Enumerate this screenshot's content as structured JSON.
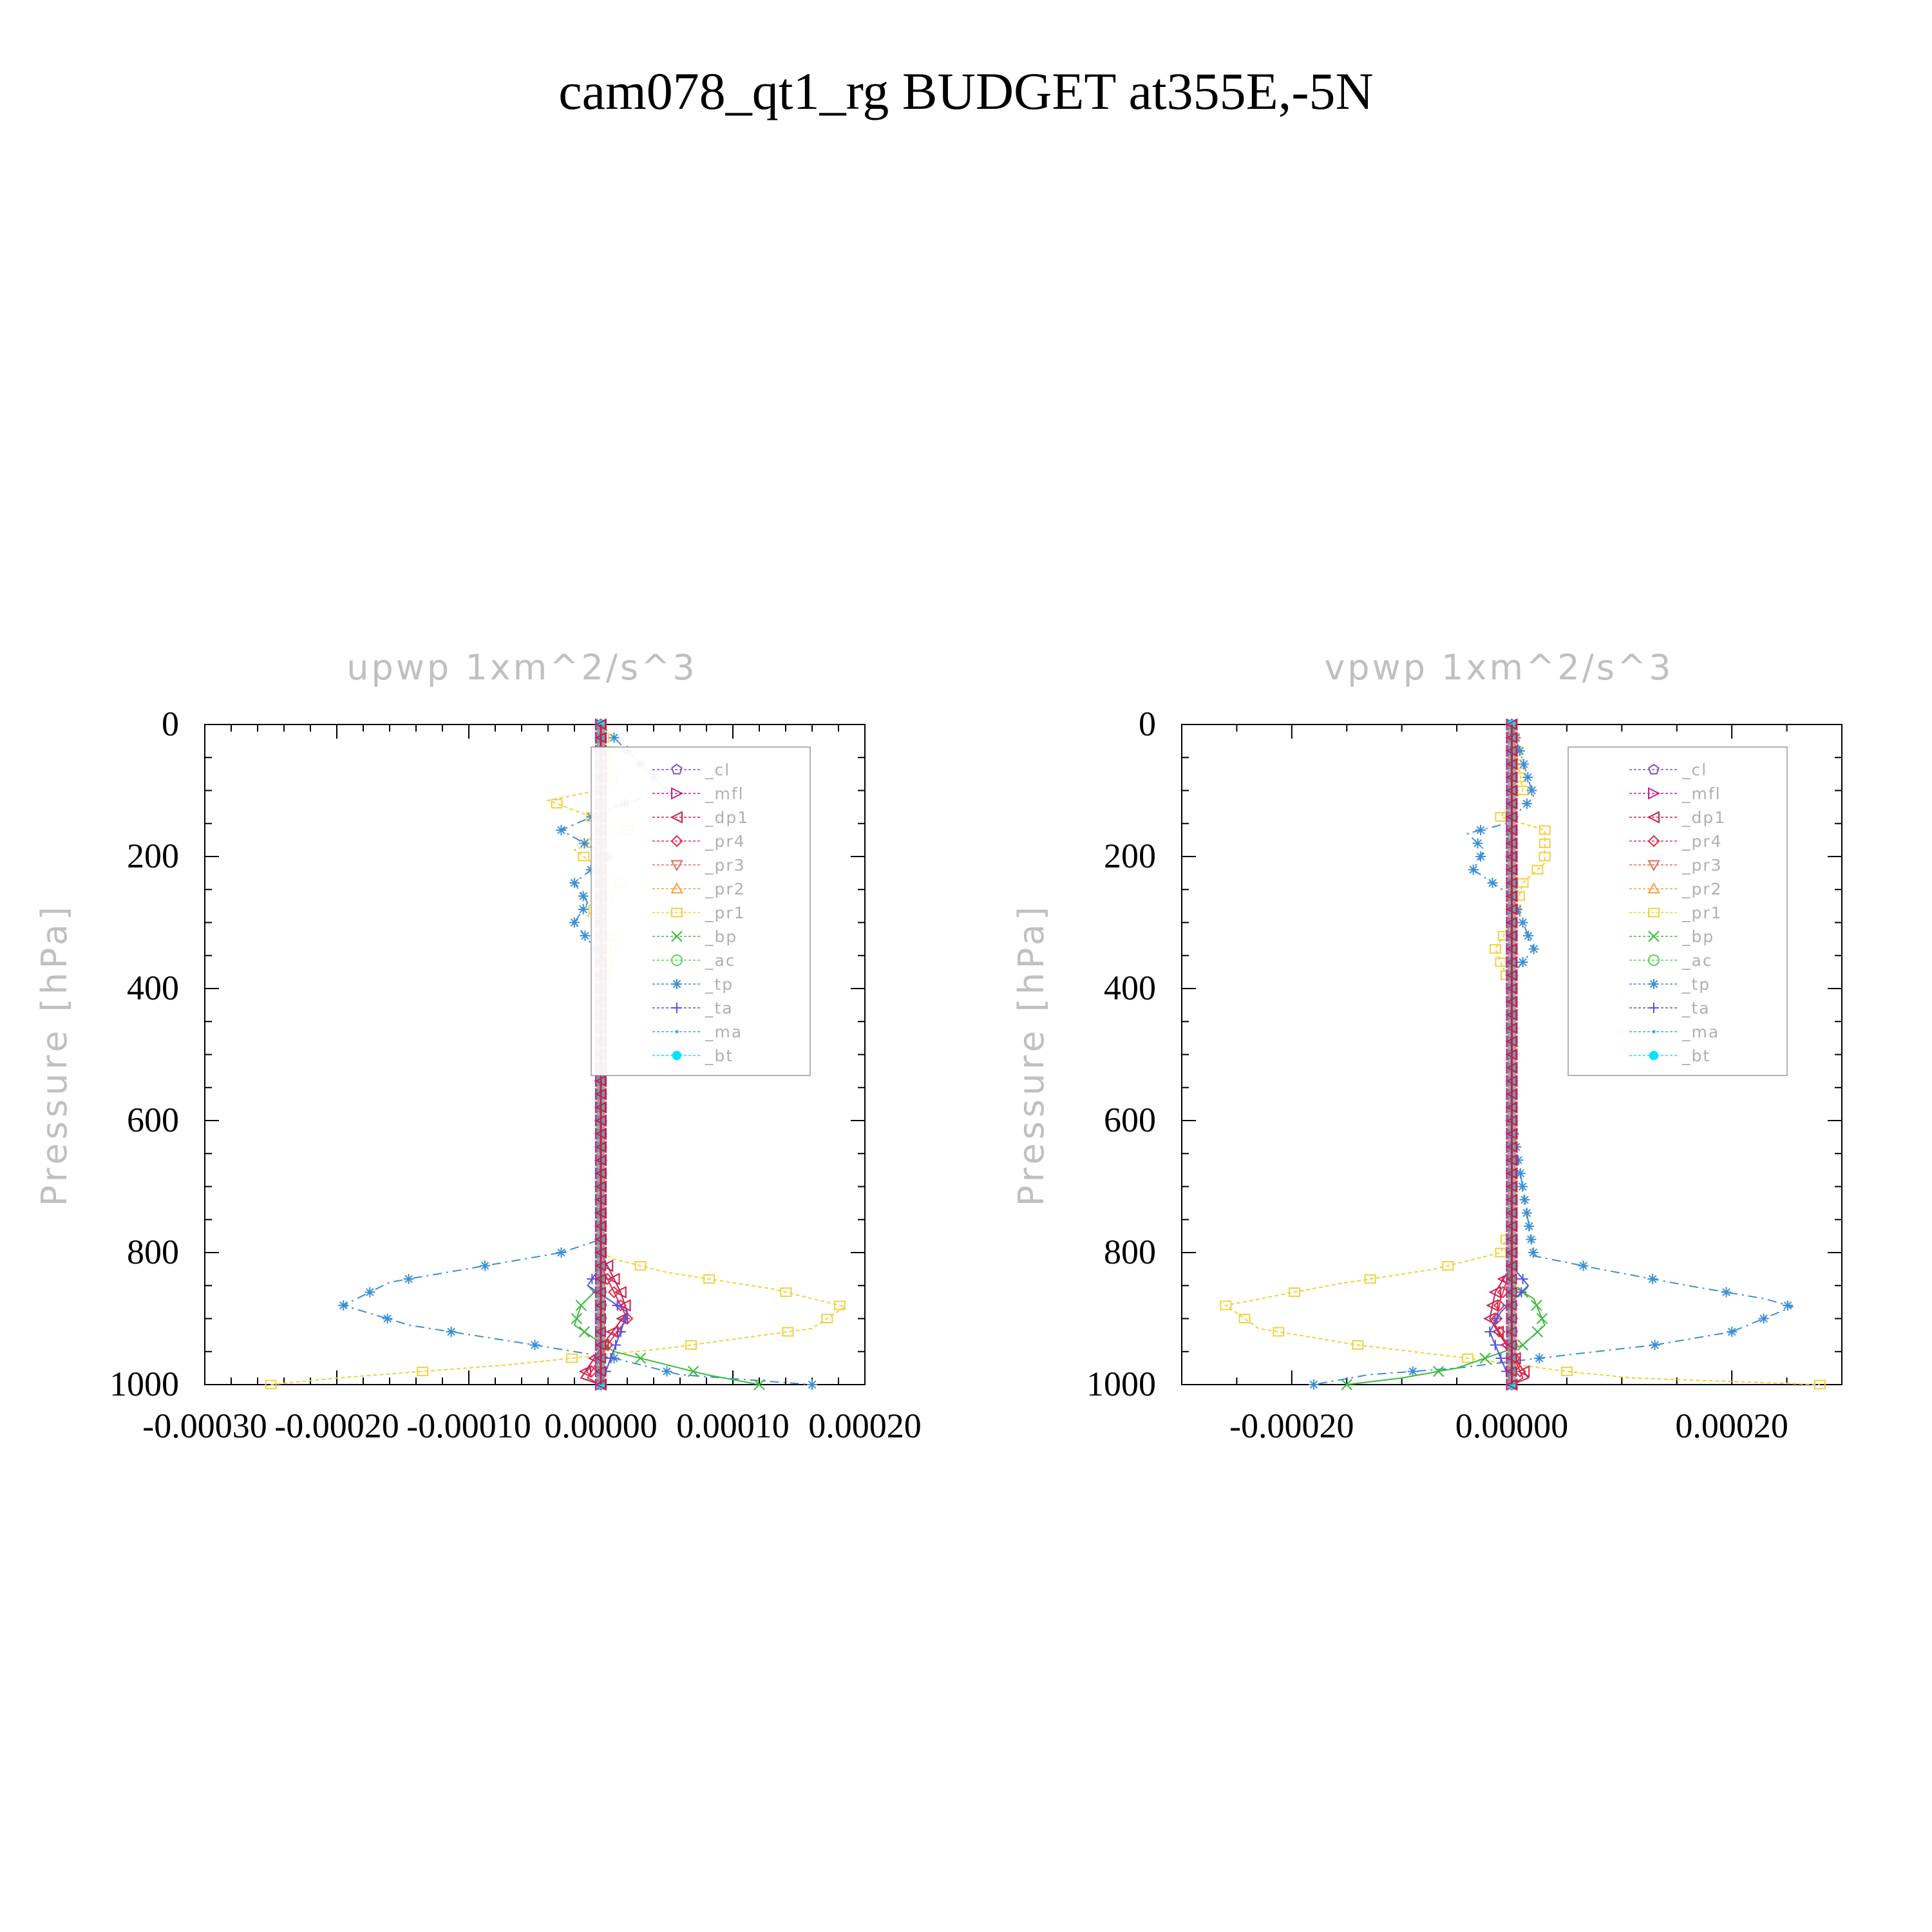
{
  "title": "cam078_qt1_rg  BUDGET at355E,-5N",
  "colors": {
    "cl": "#7a52c7",
    "mfl": "#c0208f",
    "dp1": "#c81d4c",
    "pr4": "#e0304a",
    "pr3": "#e06a5a",
    "pr2": "#f4a040",
    "pr1": "#f5cf3c",
    "bp": "#3dbb3d",
    "ac": "#58d158",
    "tp": "#3b8fd4",
    "ta": "#5454e0",
    "ma": "#3aa8c8",
    "bt": "#00e5ff",
    "axis": "#000000",
    "text_gray": "#c0c0c0"
  },
  "chart_data": [
    {
      "type": "line",
      "title": "upwp   1xm^2/s^3",
      "ylabel": "Pressure [hPa]",
      "xlabel": "",
      "xlim": [
        -0.0003,
        0.0002
      ],
      "ylim": [
        1000,
        0
      ],
      "y_inverted": true,
      "xticks": [
        -0.0003,
        -0.0002,
        -0.0001,
        0.0,
        0.0001,
        0.0002
      ],
      "xtick_labels": [
        "-0.00030",
        "-0.00020",
        "-0.00010",
        "0.00000",
        "0.00010",
        "0.00020"
      ],
      "yticks": [
        0,
        200,
        400,
        600,
        800,
        1000
      ],
      "ytick_labels": [
        "0",
        "200",
        "400",
        "600",
        "800",
        "1000"
      ],
      "legend": [
        "_cl",
        "_mfl",
        "_dp1",
        "_pr4",
        "_pr3",
        "_pr2",
        "_pr1",
        "_bp",
        "_ac",
        "_tp",
        "_ta",
        "_ma",
        "_bt"
      ],
      "legend_position": "top-right",
      "series": [
        {
          "key": "pr1",
          "name": "_pr1",
          "x": [
            0,
            1e-05,
            -4e-05,
            2e-05,
            -2e-05,
            1.5e-05,
            -1e-05,
            1e-05,
            0,
            0,
            0,
            0,
            0,
            0,
            0,
            1e-05,
            5e-05,
            0.00013,
            0.000185,
            0.00016,
            5e-05,
            -7e-05,
            -0.0002,
            -0.00025
          ],
          "y": [
            0,
            95,
            115,
            160,
            190,
            240,
            290,
            320,
            400,
            500,
            600,
            700,
            760,
            785,
            800,
            810,
            830,
            855,
            882,
            915,
            945,
            970,
            990,
            1000
          ]
        },
        {
          "key": "tp",
          "name": "_tp",
          "x": [
            0,
            5e-05,
            1e-05,
            -3e-05,
            5e-06,
            -2e-05,
            -1e-05,
            -2e-05,
            0,
            0,
            0,
            0,
            0,
            -3e-05,
            -0.00016,
            -0.000195,
            -0.000145,
            -5e-05,
            1e-05,
            6e-05,
            0.00016
          ],
          "y": [
            0,
            100,
            125,
            160,
            200,
            240,
            270,
            300,
            350,
            400,
            500,
            600,
            780,
            800,
            845,
            880,
            910,
            940,
            960,
            985,
            1000
          ]
        },
        {
          "key": "bp",
          "name": "_bp",
          "x": [
            0,
            0,
            0,
            -1.5e-05,
            -2e-05,
            1e-05,
            8e-05,
            0.00012
          ],
          "y": [
            0,
            500,
            850,
            880,
            910,
            950,
            985,
            1000
          ]
        },
        {
          "key": "dp1",
          "name": "_dp1",
          "x": [
            0,
            0,
            0,
            1.5e-05,
            2e-05,
            5e-06,
            -1.5e-05,
            0
          ],
          "y": [
            0,
            500,
            800,
            860,
            890,
            930,
            990,
            1000
          ]
        },
        {
          "key": "pr4",
          "name": "_pr4",
          "x": [
            0,
            0,
            0,
            1e-05,
            2e-05,
            5e-06,
            -1e-05,
            0
          ],
          "y": [
            0,
            500,
            820,
            860,
            900,
            940,
            990,
            1000
          ]
        },
        {
          "key": "ta",
          "name": "_ta",
          "x": [
            0,
            0,
            0,
            -1e-05,
            2e-05,
            1.5e-05,
            0
          ],
          "y": [
            0,
            500,
            820,
            850,
            890,
            920,
            1000
          ]
        },
        {
          "key": "cl",
          "name": "_cl",
          "x": [
            0,
            0
          ],
          "y": [
            0,
            1000
          ]
        },
        {
          "key": "mfl",
          "name": "_mfl",
          "x": [
            0,
            0
          ],
          "y": [
            0,
            1000
          ]
        },
        {
          "key": "bt",
          "name": "_bt",
          "x": [
            0,
            0
          ],
          "y": [
            0,
            1000
          ]
        }
      ]
    },
    {
      "type": "line",
      "title": "vpwp   1xm^2/s^3",
      "ylabel": "Pressure [hPa]",
      "xlabel": "",
      "xlim": [
        -0.0003,
        0.0003
      ],
      "ylim": [
        1000,
        0
      ],
      "y_inverted": true,
      "xticks": [
        -0.0002,
        0.0,
        0.0002
      ],
      "xtick_labels": [
        "-0.00020",
        "0.00000",
        "0.00020"
      ],
      "yticks": [
        0,
        200,
        400,
        600,
        800,
        1000
      ],
      "ytick_labels": [
        "0",
        "200",
        "400",
        "600",
        "800",
        "1000"
      ],
      "legend": [
        "_cl",
        "_mfl",
        "_dp1",
        "_pr4",
        "_pr3",
        "_pr2",
        "_pr1",
        "_bp",
        "_ac",
        "_tp",
        "_ta",
        "_ma",
        "_bt"
      ],
      "legend_position": "top-right",
      "series": [
        {
          "key": "pr1",
          "name": "_pr1",
          "x": [
            0,
            1e-05,
            -1e-05,
            3e-05,
            3e-05,
            1e-05,
            0,
            -1.5e-05,
            0,
            0,
            0,
            0,
            -1e-05,
            -7e-05,
            -0.00016,
            -0.00026,
            -0.00023,
            -0.00014,
            -4e-05,
            5e-05,
            0.00011,
            0.00028
          ],
          "y": [
            0,
            100,
            140,
            160,
            210,
            240,
            300,
            340,
            400,
            500,
            600,
            760,
            800,
            825,
            848,
            880,
            915,
            940,
            960,
            980,
            990,
            1000
          ]
        },
        {
          "key": "tp",
          "name": "_tp",
          "x": [
            0,
            2e-05,
            -5e-06,
            -4e-05,
            -2.5e-05,
            -3.5e-05,
            0,
            2e-05,
            0,
            0,
            0,
            2e-05,
            8e-05,
            0.00016,
            0.00023,
            0.000255,
            0.0002,
            0.00013,
            5e-05,
            -5e-05,
            -0.00013,
            -0.00018
          ],
          "y": [
            0,
            110,
            150,
            165,
            190,
            220,
            260,
            340,
            380,
            500,
            600,
            805,
            825,
            850,
            870,
            882,
            920,
            940,
            955,
            975,
            985,
            1000
          ]
        },
        {
          "key": "bp",
          "name": "_bp",
          "x": [
            0,
            0,
            2e-05,
            3e-05,
            1e-05,
            -5e-05,
            -0.0001,
            -0.00015
          ],
          "y": [
            0,
            850,
            870,
            910,
            940,
            975,
            990,
            1000
          ]
        },
        {
          "key": "dp1",
          "name": "_dp1",
          "x": [
            0,
            0,
            -1.5e-05,
            -2e-05,
            -5e-06,
            1.5e-05,
            0
          ],
          "y": [
            0,
            820,
            860,
            900,
            940,
            990,
            1000
          ]
        },
        {
          "key": "pr4",
          "name": "_pr4",
          "x": [
            0,
            0,
            -1e-05,
            -1.5e-05,
            0,
            1e-05,
            0
          ],
          "y": [
            0,
            820,
            870,
            910,
            950,
            990,
            1000
          ]
        },
        {
          "key": "ta",
          "name": "_ta",
          "x": [
            0,
            0,
            1.5e-05,
            -1e-05,
            -2e-05,
            0
          ],
          "y": [
            0,
            820,
            850,
            890,
            920,
            1000
          ]
        },
        {
          "key": "cl",
          "name": "_cl",
          "x": [
            0,
            0
          ],
          "y": [
            0,
            1000
          ]
        },
        {
          "key": "mfl",
          "name": "_mfl",
          "x": [
            0,
            0
          ],
          "y": [
            0,
            1000
          ]
        },
        {
          "key": "bt",
          "name": "_bt",
          "x": [
            0,
            0
          ],
          "y": [
            0,
            1000
          ]
        }
      ]
    }
  ]
}
